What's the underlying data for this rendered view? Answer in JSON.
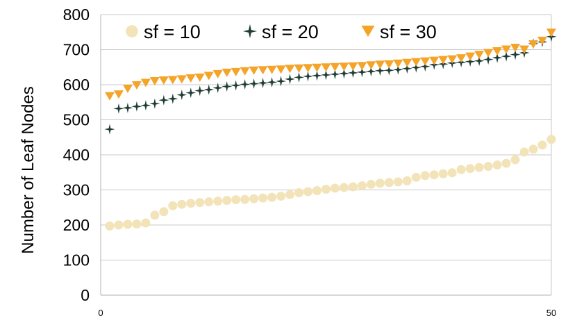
{
  "chart_data": {
    "type": "scatter",
    "title": "",
    "xlabel": "",
    "ylabel": "Number of Leaf Nodes",
    "xlim": [
      0,
      50
    ],
    "ylim": [
      0,
      800
    ],
    "x_ticks": [
      0,
      50
    ],
    "y_ticks": [
      0,
      100,
      200,
      300,
      400,
      500,
      600,
      700,
      800
    ],
    "grid": "horizontal",
    "legend_position": "top",
    "x": [
      1,
      2,
      3,
      4,
      5,
      6,
      7,
      8,
      9,
      10,
      11,
      12,
      13,
      14,
      15,
      16,
      17,
      18,
      19,
      20,
      21,
      22,
      23,
      24,
      25,
      26,
      27,
      28,
      29,
      30,
      31,
      32,
      33,
      34,
      35,
      36,
      37,
      38,
      39,
      40,
      41,
      42,
      43,
      44,
      45,
      46,
      47,
      48,
      49,
      50
    ],
    "series": [
      {
        "name": "sf = 10",
        "marker": "circle",
        "color": "#f3e3b8",
        "values": [
          197,
          200,
          202,
          203,
          206,
          228,
          238,
          255,
          259,
          262,
          264,
          266,
          268,
          270,
          272,
          273,
          275,
          277,
          279,
          282,
          287,
          292,
          295,
          298,
          302,
          305,
          307,
          309,
          312,
          316,
          319,
          321,
          323,
          326,
          336,
          341,
          343,
          346,
          349,
          358,
          361,
          364,
          367,
          371,
          376,
          386,
          408,
          416,
          428,
          444
        ]
      },
      {
        "name": "sf = 20",
        "marker": "star4",
        "color": "#1e3d35",
        "values": [
          473,
          532,
          534,
          538,
          541,
          546,
          556,
          560,
          571,
          577,
          583,
          586,
          591,
          595,
          598,
          601,
          603,
          605,
          607,
          610,
          616,
          621,
          624,
          626,
          628,
          630,
          632,
          634,
          636,
          638,
          640,
          641,
          643,
          646,
          649,
          652,
          657,
          659,
          662,
          664,
          666,
          668,
          672,
          677,
          681,
          686,
          691,
          717,
          722,
          737
        ]
      },
      {
        "name": "sf = 30",
        "marker": "triangle-down",
        "color": "#f5a42a",
        "values": [
          567,
          572,
          588,
          598,
          605,
          610,
          612,
          613,
          615,
          618,
          620,
          625,
          630,
          634,
          636,
          638,
          640,
          641,
          642,
          643,
          645,
          646,
          647,
          648,
          649,
          650,
          651,
          652,
          653,
          655,
          657,
          658,
          660,
          662,
          664,
          666,
          668,
          670,
          672,
          675,
          680,
          685,
          690,
          695,
          700,
          705,
          700,
          715,
          725,
          748
        ]
      }
    ]
  }
}
